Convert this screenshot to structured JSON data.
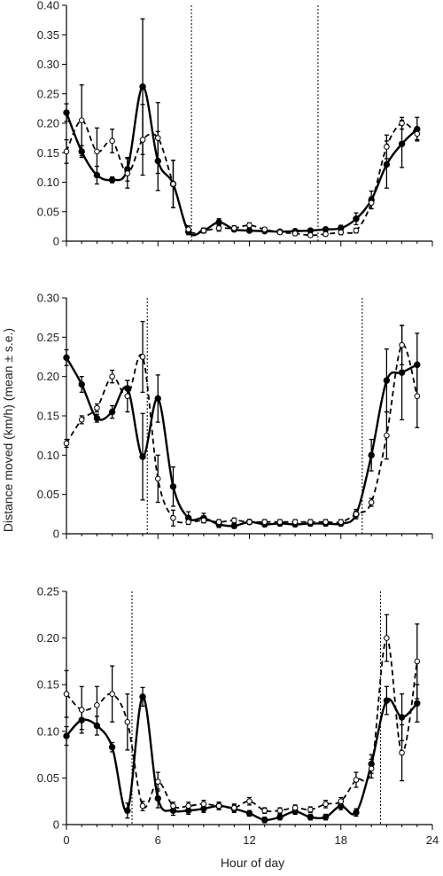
{
  "figure": {
    "ylabel": "Distance moved (km/h) (mean ± s.e.)",
    "xlabel": "Hour of day",
    "x_tick_labels": [
      "0",
      "6",
      "12",
      "18",
      "24"
    ]
  },
  "chart_data": [
    {
      "type": "line",
      "xlim": [
        0,
        24
      ],
      "ylim": [
        0,
        0.4
      ],
      "y_ticks": [
        0,
        0.05,
        0.1,
        0.15,
        0.2,
        0.25,
        0.3,
        0.35,
        0.4
      ],
      "y_tick_labels": [
        "0",
        "0.05",
        "0.10",
        "0.15",
        "0.20",
        "0.25",
        "0.30",
        "0.35",
        "0.40"
      ],
      "vlines": [
        8.2,
        16.5
      ],
      "series": [
        {
          "style": "solid-filled",
          "x": [
            0,
            1,
            2,
            3,
            4,
            5,
            6,
            7,
            8,
            9,
            10,
            11,
            12,
            13,
            14,
            15,
            16,
            17,
            18,
            19,
            20,
            21,
            22,
            23
          ],
          "y": [
            0.218,
            0.152,
            0.112,
            0.104,
            0.122,
            0.262,
            0.136,
            0.097,
            0.016,
            0.018,
            0.032,
            0.02,
            0.018,
            0.017,
            0.016,
            0.017,
            0.018,
            0.02,
            0.022,
            0.038,
            0.07,
            0.13,
            0.165,
            0.19
          ],
          "err": [
            0.015,
            0.01,
            0.015,
            0.005,
            0.02,
            0.115,
            0.05,
            0.04,
            0.005,
            0.004,
            0.006,
            0.004,
            0.003,
            0.003,
            0.003,
            0.003,
            0.003,
            0.003,
            0.005,
            0.01,
            0.015,
            0.04,
            0.04,
            0.02
          ]
        },
        {
          "style": "dashed-open",
          "x": [
            0,
            1,
            2,
            3,
            4,
            5,
            6,
            7,
            8,
            9,
            10,
            11,
            12,
            13,
            14,
            15,
            16,
            17,
            18,
            19,
            20,
            21,
            22,
            23
          ],
          "y": [
            0.152,
            0.205,
            0.152,
            0.17,
            0.115,
            0.172,
            0.175,
            0.097,
            0.02,
            0.018,
            0.022,
            0.022,
            0.027,
            0.02,
            0.015,
            0.013,
            0.01,
            0.012,
            0.015,
            0.018,
            0.065,
            0.16,
            0.2,
            0.182
          ],
          "err": [
            0.02,
            0.06,
            0.04,
            0.02,
            0.025,
            0.06,
            0.06,
            0.04,
            0.006,
            0.004,
            0.005,
            0.004,
            0.004,
            0.003,
            0.003,
            0.003,
            0.003,
            0.003,
            0.004,
            0.004,
            0.01,
            0.02,
            0.01,
            0.01
          ]
        }
      ]
    },
    {
      "type": "line",
      "xlim": [
        0,
        24
      ],
      "ylim": [
        0,
        0.3
      ],
      "y_ticks": [
        0,
        0.05,
        0.1,
        0.15,
        0.2,
        0.25,
        0.3
      ],
      "y_tick_labels": [
        "0",
        "0.05",
        "0.10",
        "0.15",
        "0.20",
        "0.25",
        "0.30"
      ],
      "vlines": [
        5.3,
        19.4
      ],
      "series": [
        {
          "style": "solid-filled",
          "x": [
            0,
            1,
            2,
            3,
            4,
            5,
            6,
            7,
            8,
            9,
            10,
            11,
            12,
            13,
            14,
            15,
            16,
            17,
            18,
            19,
            20,
            21,
            22,
            23
          ],
          "y": [
            0.224,
            0.19,
            0.147,
            0.155,
            0.185,
            0.098,
            0.172,
            0.06,
            0.02,
            0.02,
            0.012,
            0.01,
            0.015,
            0.012,
            0.013,
            0.012,
            0.013,
            0.013,
            0.013,
            0.025,
            0.1,
            0.195,
            0.205,
            0.215
          ],
          "err": [
            0.01,
            0.01,
            0.005,
            0.008,
            0.01,
            0.055,
            0.03,
            0.025,
            0.008,
            0.006,
            0.004,
            0.003,
            0.003,
            0.003,
            0.003,
            0.003,
            0.003,
            0.003,
            0.003,
            0.006,
            0.02,
            0.04,
            0.06,
            0.04
          ]
        },
        {
          "style": "dashed-open",
          "x": [
            0,
            1,
            2,
            3,
            4,
            5,
            6,
            7,
            8,
            9,
            10,
            11,
            12,
            13,
            14,
            15,
            16,
            17,
            18,
            19,
            20,
            21,
            22,
            23
          ],
          "y": [
            0.115,
            0.145,
            0.16,
            0.2,
            0.175,
            0.225,
            0.07,
            0.02,
            0.015,
            0.017,
            0.015,
            0.017,
            0.015,
            0.015,
            0.015,
            0.015,
            0.015,
            0.015,
            0.015,
            0.025,
            0.04,
            0.125,
            0.24,
            0.175
          ],
          "err": [
            0.005,
            0.005,
            0.005,
            0.008,
            0.02,
            0.045,
            0.03,
            0.01,
            0.003,
            0.003,
            0.003,
            0.003,
            0.003,
            0.003,
            0.003,
            0.003,
            0.003,
            0.003,
            0.003,
            0.004,
            0.005,
            0.03,
            0.025,
            0.04
          ]
        }
      ]
    },
    {
      "type": "line",
      "xlim": [
        0,
        24
      ],
      "ylim": [
        0,
        0.25
      ],
      "y_ticks": [
        0,
        0.05,
        0.1,
        0.15,
        0.2,
        0.25
      ],
      "y_tick_labels": [
        "0",
        "0.05",
        "0.10",
        "0.15",
        "0.20",
        "0.25"
      ],
      "vlines": [
        4.3,
        20.6
      ],
      "series": [
        {
          "style": "solid-filled",
          "x": [
            0,
            1,
            2,
            3,
            4,
            5,
            6,
            7,
            8,
            9,
            10,
            11,
            12,
            13,
            14,
            15,
            16,
            17,
            18,
            19,
            20,
            21,
            22,
            23
          ],
          "y": [
            0.095,
            0.112,
            0.106,
            0.083,
            0.015,
            0.137,
            0.028,
            0.015,
            0.015,
            0.017,
            0.02,
            0.017,
            0.012,
            0.005,
            0.008,
            0.014,
            0.008,
            0.008,
            0.02,
            0.013,
            0.065,
            0.133,
            0.115,
            0.13
          ],
          "err": [
            0.01,
            0.01,
            0.01,
            0.005,
            0.008,
            0.01,
            0.01,
            0.005,
            0.004,
            0.004,
            0.004,
            0.004,
            0.003,
            0.003,
            0.003,
            0.003,
            0.003,
            0.003,
            0.004,
            0.004,
            0.01,
            0.015,
            0.025,
            0.02
          ]
        },
        {
          "style": "dashed-open",
          "x": [
            0,
            1,
            2,
            3,
            4,
            5,
            6,
            7,
            8,
            9,
            10,
            11,
            12,
            13,
            14,
            15,
            16,
            17,
            18,
            19,
            20,
            21,
            22,
            23
          ],
          "y": [
            0.14,
            0.123,
            0.128,
            0.14,
            0.11,
            0.02,
            0.046,
            0.02,
            0.02,
            0.022,
            0.02,
            0.018,
            0.025,
            0.015,
            0.015,
            0.018,
            0.016,
            0.022,
            0.025,
            0.048,
            0.06,
            0.2,
            0.077,
            0.175
          ],
          "err": [
            0.025,
            0.025,
            0.02,
            0.03,
            0.03,
            0.005,
            0.01,
            0.004,
            0.004,
            0.004,
            0.004,
            0.004,
            0.004,
            0.003,
            0.003,
            0.003,
            0.003,
            0.004,
            0.004,
            0.008,
            0.01,
            0.025,
            0.03,
            0.04
          ]
        }
      ]
    }
  ]
}
